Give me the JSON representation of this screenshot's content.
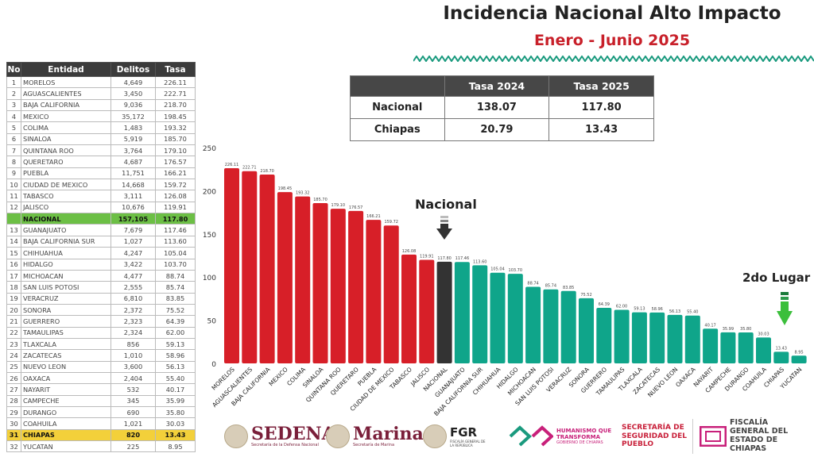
{
  "header": {
    "title": "Incidencia Nacional Alto Impacto",
    "subtitle": "Enero - Junio 2025"
  },
  "ranking_table": {
    "headers": [
      "No",
      "Entidad",
      "Delitos",
      "Tasa"
    ],
    "rows": [
      [
        "1",
        "MORELOS",
        "4,649",
        "226.11"
      ],
      [
        "2",
        "AGUASCALIENTES",
        "3,450",
        "222.71"
      ],
      [
        "3",
        "BAJA CALIFORNIA",
        "9,036",
        "218.70"
      ],
      [
        "4",
        "MEXICO",
        "35,172",
        "198.45"
      ],
      [
        "5",
        "COLIMA",
        "1,483",
        "193.32"
      ],
      [
        "6",
        "SINALOA",
        "5,919",
        "185.70"
      ],
      [
        "7",
        "QUINTANA ROO",
        "3,764",
        "179.10"
      ],
      [
        "8",
        "QUERETARO",
        "4,687",
        "176.57"
      ],
      [
        "9",
        "PUEBLA",
        "11,751",
        "166.21"
      ],
      [
        "10",
        "CIUDAD DE MEXICO",
        "14,668",
        "159.72"
      ],
      [
        "11",
        "TABASCO",
        "3,111",
        "126.08"
      ],
      [
        "12",
        "JALISCO",
        "10,676",
        "119.91"
      ],
      [
        "",
        "NACIONAL",
        "157,105",
        "117.80"
      ],
      [
        "13",
        "GUANAJUATO",
        "7,679",
        "117.46"
      ],
      [
        "14",
        "BAJA CALIFORNIA SUR",
        "1,027",
        "113.60"
      ],
      [
        "15",
        "CHIHUAHUA",
        "4,247",
        "105.04"
      ],
      [
        "16",
        "HIDALGO",
        "3,422",
        "103.70"
      ],
      [
        "17",
        "MICHOACAN",
        "4,477",
        "88.74"
      ],
      [
        "18",
        "SAN LUIS POTOSI",
        "2,555",
        "85.74"
      ],
      [
        "19",
        "VERACRUZ",
        "6,810",
        "83.85"
      ],
      [
        "20",
        "SONORA",
        "2,372",
        "75.52"
      ],
      [
        "21",
        "GUERRERO",
        "2,323",
        "64.39"
      ],
      [
        "22",
        "TAMAULIPAS",
        "2,324",
        "62.00"
      ],
      [
        "23",
        "TLAXCALA",
        "856",
        "59.13"
      ],
      [
        "24",
        "ZACATECAS",
        "1,010",
        "58.96"
      ],
      [
        "25",
        "NUEVO LEON",
        "3,600",
        "56.13"
      ],
      [
        "26",
        "OAXACA",
        "2,404",
        "55.40"
      ],
      [
        "27",
        "NAYARIT",
        "532",
        "40.17"
      ],
      [
        "28",
        "CAMPECHE",
        "345",
        "35.99"
      ],
      [
        "29",
        "DURANGO",
        "690",
        "35.80"
      ],
      [
        "30",
        "COAHUILA",
        "1,021",
        "30.03"
      ],
      [
        "31",
        "CHIAPAS",
        "820",
        "13.43"
      ],
      [
        "32",
        "YUCATAN",
        "225",
        "8.95"
      ]
    ]
  },
  "comparison_table": {
    "headers": [
      "",
      "Tasa 2024",
      "Tasa 2025"
    ],
    "rows": [
      [
        "Nacional",
        "138.07",
        "117.80"
      ],
      [
        "Chiapas",
        "20.79",
        "13.43"
      ]
    ]
  },
  "annotations": {
    "nacional": "Nacional",
    "lugar": "2do Lugar"
  },
  "colors": {
    "above": "#d71f28",
    "nacional": "#333333",
    "below": "#0fa58a",
    "chiapas_highlight": "#f3d03a",
    "nacional_highlight": "#6cbf45",
    "subtitle": "#c8202a"
  },
  "chart_data": {
    "type": "bar",
    "categories": [
      "MORELOS",
      "AGUASCALIENTES",
      "BAJA CALIFORNIA",
      "MEXICO",
      "COLIMA",
      "SINALOA",
      "QUINTANA ROO",
      "QUERETARO",
      "PUEBLA",
      "CIUDAD DE MEXICO",
      "TABASCO",
      "JALISCO",
      "NACIONAL",
      "GUANAJUATO",
      "BAJA CALIFORNIA SUR",
      "CHIHUAHUA",
      "HIDALGO",
      "MICHOACAN",
      "SAN LUIS POTOSI",
      "VERACRUZ",
      "SONORA",
      "GUERRERO",
      "TAMAULIPAS",
      "TLAXCALA",
      "ZACATECAS",
      "NUEVO LEON",
      "OAXACA",
      "NAYARIT",
      "CAMPECHE",
      "DURANGO",
      "COAHUILA",
      "CHIAPAS",
      "YUCATAN"
    ],
    "values": [
      226.11,
      222.71,
      218.7,
      198.45,
      193.32,
      185.7,
      179.1,
      176.57,
      166.21,
      159.72,
      126.08,
      119.91,
      117.8,
      117.46,
      113.6,
      105.04,
      103.7,
      88.74,
      85.74,
      83.85,
      75.52,
      64.39,
      62.0,
      59.13,
      58.96,
      56.13,
      55.4,
      40.17,
      35.99,
      35.8,
      30.03,
      13.43,
      8.95
    ],
    "data_labels": [
      "226.11",
      "222.71",
      "218.70",
      "198.45",
      "193.32",
      "185.70",
      "179.10",
      "176.57",
      "166.21",
      "159.72",
      "126.08",
      "119.91",
      "117.80",
      "117.46",
      "113.60",
      "105.04",
      "103.70",
      "88.74",
      "85.74",
      "83.85",
      "75.52",
      "64.39",
      "62.00",
      "59.13",
      "58.96",
      "56.13",
      "55.40",
      "40.17",
      "35.99",
      "35.80",
      "30.03",
      "13.43",
      "8.95"
    ],
    "yticks": [
      "0",
      "50",
      "100",
      "150",
      "200",
      "250"
    ],
    "ylim": [
      0,
      250
    ],
    "grid": false,
    "legend": "none"
  },
  "logos": {
    "sedena": "SEDENA",
    "sedena_sub": "Secretaría de la Defensa Nacional",
    "marina": "Marina",
    "marina_sub": "Secretaría de Marina",
    "fgr": "FGR",
    "fgr_sub": "FISCALÍA GENERAL DE LA REPÚBLICA",
    "chiapas": "HUMANISMO QUE TRANSFORMA",
    "chiapas_sub": "GOBIERNO DE CHIAPAS",
    "ssp": "SECRETARÍA DE SEGURIDAD DEL PUEBLO",
    "fge": "FISCALÍA GENERAL DEL ESTADO DE CHIAPAS"
  }
}
